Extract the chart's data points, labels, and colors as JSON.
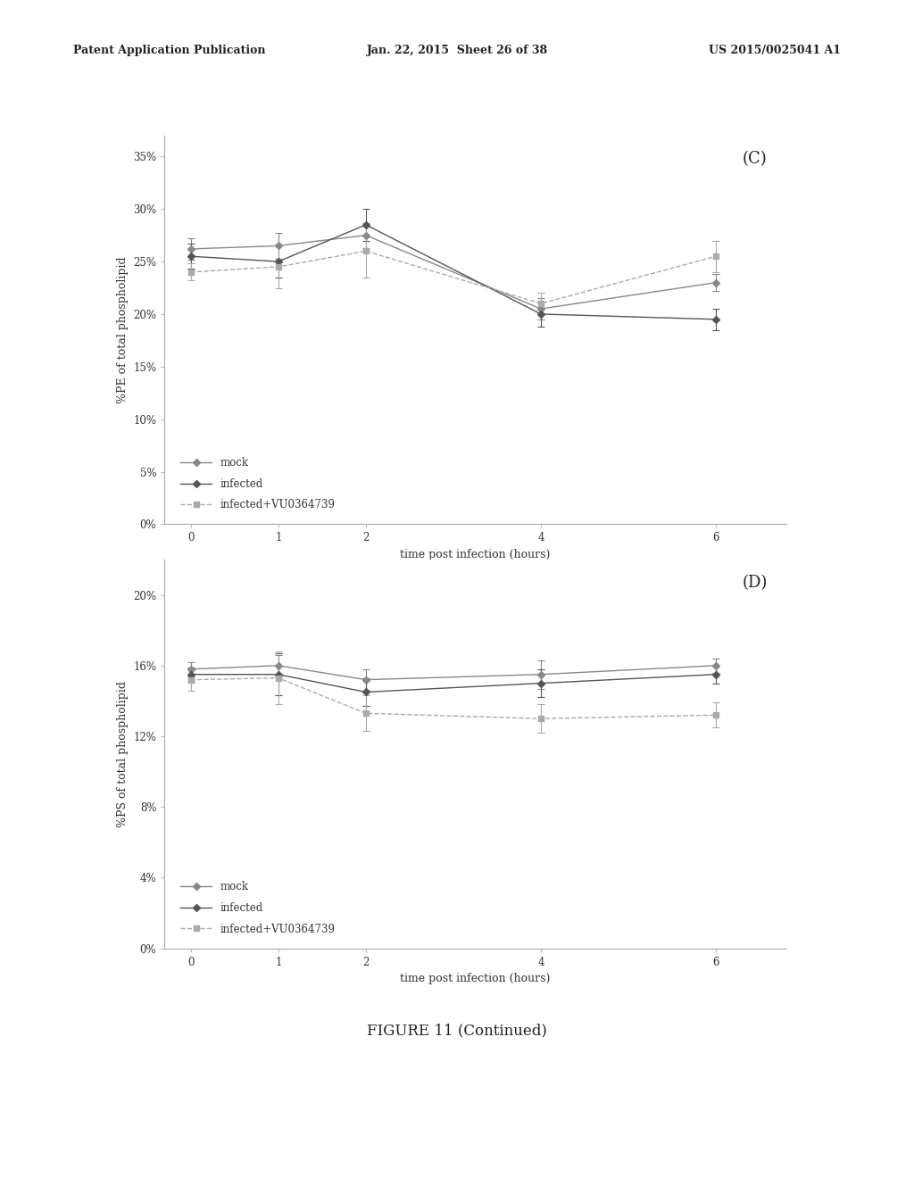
{
  "page_header_left": "Patent Application Publication",
  "page_header_mid": "Jan. 22, 2015  Sheet 26 of 38",
  "page_header_right": "US 2015/0025041 A1",
  "figure_caption": "FIGURE 11 (Continued)",
  "background_color": "#ffffff",
  "chart_C": {
    "label": "(C)",
    "ylabel": "%PE of total phospholipid",
    "xlabel": "time post infection (hours)",
    "yticks": [
      0,
      5,
      10,
      15,
      20,
      25,
      30,
      35
    ],
    "ytick_labels": [
      "0%",
      "5%",
      "10%",
      "15%",
      "20%",
      "25%",
      "30%",
      "35%"
    ],
    "xticks": [
      0,
      1,
      2,
      4,
      6
    ],
    "ylim": [
      0,
      37
    ],
    "xlim": [
      -0.3,
      6.8
    ],
    "series": [
      {
        "key": "mock",
        "x": [
          0,
          1,
          2,
          4,
          6
        ],
        "y": [
          26.2,
          26.5,
          27.5,
          20.5,
          23.0
        ],
        "yerr": [
          1.0,
          1.2,
          1.2,
          1.0,
          0.8
        ],
        "color": "#888888",
        "linestyle": "-",
        "marker": "D",
        "label": "mock"
      },
      {
        "key": "infected",
        "x": [
          0,
          1,
          2,
          4,
          6
        ],
        "y": [
          25.5,
          25.0,
          28.5,
          20.0,
          19.5
        ],
        "yerr": [
          1.2,
          1.5,
          1.5,
          1.2,
          1.0
        ],
        "color": "#555555",
        "linestyle": "-",
        "marker": "D",
        "label": "infected"
      },
      {
        "key": "infected_vu",
        "x": [
          0,
          1,
          2,
          4,
          6
        ],
        "y": [
          24.0,
          24.5,
          26.0,
          21.0,
          25.5
        ],
        "yerr": [
          0.8,
          2.0,
          2.5,
          1.0,
          1.5
        ],
        "color": "#aaaaaa",
        "linestyle": "--",
        "marker": "s",
        "label": "infected+VU0364739"
      }
    ]
  },
  "chart_D": {
    "label": "(D)",
    "ylabel": "%PS of total phospholipid",
    "xlabel": "time post infection (hours)",
    "yticks": [
      0,
      4,
      8,
      12,
      16,
      20
    ],
    "ytick_labels": [
      "0%",
      "4%",
      "8%",
      "12%",
      "16%",
      "20%"
    ],
    "xticks": [
      0,
      1,
      2,
      4,
      6
    ],
    "ylim": [
      0,
      22
    ],
    "xlim": [
      -0.3,
      6.8
    ],
    "series": [
      {
        "key": "mock",
        "x": [
          0,
          1,
          2,
          4,
          6
        ],
        "y": [
          15.8,
          16.0,
          15.2,
          15.5,
          16.0
        ],
        "yerr": [
          0.4,
          0.6,
          0.6,
          0.8,
          0.4
        ],
        "color": "#888888",
        "linestyle": "-",
        "marker": "D",
        "label": "mock"
      },
      {
        "key": "infected",
        "x": [
          0,
          1,
          2,
          4,
          6
        ],
        "y": [
          15.5,
          15.5,
          14.5,
          15.0,
          15.5
        ],
        "yerr": [
          0.4,
          1.2,
          0.8,
          0.8,
          0.5
        ],
        "color": "#555555",
        "linestyle": "-",
        "marker": "D",
        "label": "infected"
      },
      {
        "key": "infected_vu",
        "x": [
          0,
          1,
          2,
          4,
          6
        ],
        "y": [
          15.2,
          15.3,
          13.3,
          13.0,
          13.2
        ],
        "yerr": [
          0.6,
          1.5,
          1.0,
          0.8,
          0.7
        ],
        "color": "#aaaaaa",
        "linestyle": "--",
        "marker": "s",
        "label": "infected+VU0364739"
      }
    ]
  }
}
